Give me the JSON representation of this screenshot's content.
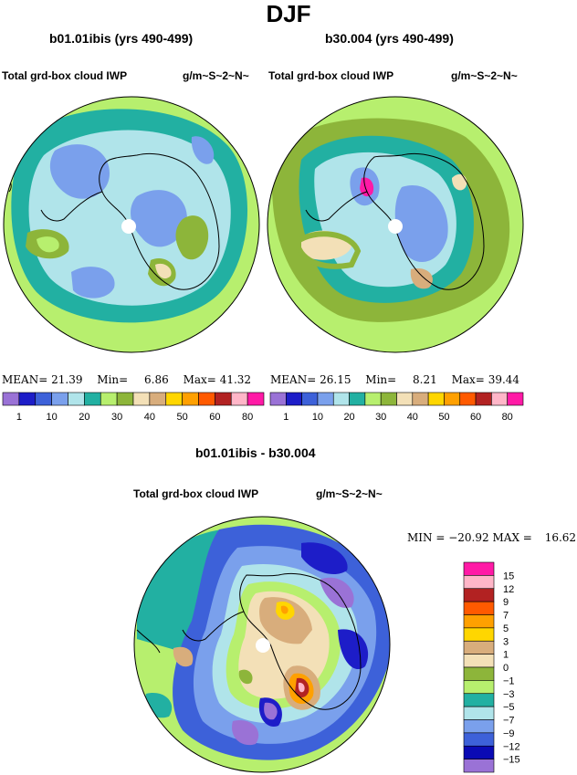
{
  "title": "DJF",
  "panels": [
    {
      "title": "b01.01ibis (yrs 490-499)",
      "var_label": "Total grd-box cloud IWP",
      "units": "g/m~S~2~N~",
      "stats": {
        "mean_label": "MEAN=",
        "mean": "21.39",
        "min_label": "Min=",
        "min": "6.86",
        "max_label": "Max=",
        "max": "41.32"
      }
    },
    {
      "title": "b30.004 (yrs 490-499)",
      "var_label": "Total grd-box cloud IWP",
      "units": "g/m~S~2~N~",
      "stats": {
        "mean_label": "MEAN=",
        "mean": "26.15",
        "min_label": "Min=",
        "min": "8.21",
        "max_label": "Max=",
        "max": "39.44"
      }
    },
    {
      "title": "b01.01ibis - b30.004",
      "var_label": "Total grd-box cloud IWP",
      "units": "g/m~S~2~N~",
      "stats": {
        "min_label": "MIN =",
        "min": "−20.92",
        "max_label": "MAX =",
        "max": "16.62"
      }
    }
  ],
  "colors": {
    "abs_levels": [
      "#9a72d6",
      "#1d1dc8",
      "#3d61d9",
      "#7aa0ec",
      "#b0e4ea",
      "#22b0a2",
      "#b7ef6e",
      "#8db53a",
      "#f3e0b7",
      "#d8ad7c",
      "#ffd600",
      "#ffa000",
      "#ff5a00",
      "#b22222",
      "#ffb6c8",
      "#ff1aa6"
    ],
    "diff_levels": [
      "#9a72d6",
      "#0a0ab4",
      "#3d61d9",
      "#7aa0ec",
      "#b0e4ea",
      "#22b0a2",
      "#b7ef6e",
      "#8db53a",
      "#f3e0b7",
      "#d8ad7c",
      "#ffd600",
      "#ffa000",
      "#ff5a00",
      "#b22222",
      "#ffb6c8",
      "#ff1aa6"
    ]
  },
  "chart_data": [
    {
      "type": "heatmap",
      "title": "b01.01ibis (yrs 490-499)",
      "projection": "south polar stereographic",
      "colorbar_ticks": [
        "1",
        "10",
        "20",
        "30",
        "40",
        "50",
        "60",
        "80"
      ],
      "mean": 21.39,
      "min": 6.86,
      "max": 41.32
    },
    {
      "type": "heatmap",
      "title": "b30.004 (yrs 490-499)",
      "projection": "south polar stereographic",
      "colorbar_ticks": [
        "1",
        "10",
        "20",
        "30",
        "40",
        "50",
        "60",
        "80"
      ],
      "mean": 26.15,
      "min": 8.21,
      "max": 39.44
    },
    {
      "type": "heatmap",
      "title": "b01.01ibis - b30.004",
      "projection": "south polar stereographic",
      "colorbar_ticks": [
        "15",
        "12",
        "9",
        "7",
        "5",
        "3",
        "1",
        "0",
        "−1",
        "−3",
        "−5",
        "−7",
        "−9",
        "−12",
        "−15"
      ],
      "min": -20.92,
      "max": 16.62
    }
  ]
}
